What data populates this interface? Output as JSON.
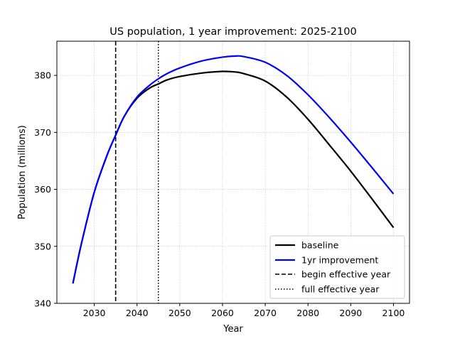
{
  "chart_data": {
    "type": "line",
    "title": "US population, 1 year improvement: 2025-2100",
    "xlabel": "Year",
    "ylabel": "Population (millions)",
    "xlim": [
      2021.25,
      2103.75
    ],
    "ylim": [
      340,
      386
    ],
    "xticks": [
      2030,
      2040,
      2050,
      2060,
      2070,
      2080,
      2090,
      2100
    ],
    "yticks": [
      340,
      350,
      360,
      370,
      380
    ],
    "grid": true,
    "legend_position": "lower-right",
    "series": [
      {
        "name": "baseline",
        "color": "#000000",
        "x": [
          2025,
          2027,
          2030,
          2033,
          2035,
          2037,
          2040,
          2043,
          2045,
          2047,
          2050,
          2055,
          2060,
          2063,
          2065,
          2070,
          2075,
          2080,
          2085,
          2090,
          2095,
          2100
        ],
        "y": [
          343.5,
          350.5,
          359.5,
          366.0,
          369.5,
          372.8,
          376.0,
          377.8,
          378.5,
          379.2,
          379.8,
          380.4,
          380.7,
          380.6,
          380.3,
          379.0,
          376.2,
          372.3,
          367.8,
          363.2,
          358.3,
          353.3
        ]
      },
      {
        "name": "1yr improvement",
        "color": "#0000ff",
        "x": [
          2025,
          2027,
          2030,
          2033,
          2035,
          2037,
          2040,
          2043,
          2045,
          2047,
          2050,
          2055,
          2060,
          2063,
          2065,
          2070,
          2075,
          2080,
          2085,
          2090,
          2095,
          2100
        ],
        "y": [
          343.5,
          350.5,
          359.5,
          366.0,
          369.5,
          372.8,
          376.2,
          378.3,
          379.4,
          380.3,
          381.3,
          382.5,
          383.2,
          383.4,
          383.3,
          382.3,
          380.0,
          376.6,
          372.6,
          368.3,
          363.8,
          359.2
        ]
      }
    ],
    "vlines": [
      {
        "name": "begin effective year",
        "x": 2035,
        "style": "dashed",
        "color": "#000000"
      },
      {
        "name": "full effective year",
        "x": 2045,
        "style": "dotted",
        "color": "#000000"
      }
    ]
  }
}
